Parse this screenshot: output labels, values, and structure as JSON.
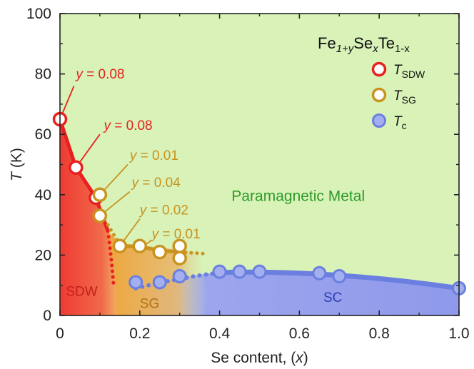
{
  "chart_data": {
    "type": "scatter",
    "xlabel": {
      "text": "Se content, (",
      "var": "x",
      "tail": ")"
    },
    "ylabel": {
      "var": "T",
      "unit": " (K)"
    },
    "xlim": [
      0,
      1.0
    ],
    "ylim": [
      0,
      100
    ],
    "xticks": [
      "0",
      "0.2",
      "0.4",
      "0.6",
      "0.8",
      "1.0"
    ],
    "yticks": [
      "0",
      "20",
      "40",
      "60",
      "80",
      "100"
    ],
    "legend": {
      "position": "top-right",
      "title": {
        "base": "Fe",
        "sub1": "1+y",
        "mid1": "Se",
        "sub2": "x",
        "mid2": "Te",
        "sub3": "1-x"
      },
      "entries": [
        {
          "var": "T",
          "sub": "SDW",
          "color": "#e8201f"
        },
        {
          "var": "T",
          "sub": "SG",
          "color": "#c9931f"
        },
        {
          "var": "T",
          "sub": "c",
          "color": "#6b7fe0"
        }
      ]
    },
    "series": [
      {
        "name": "T_SDW",
        "color": "#e8201f",
        "points": [
          [
            0,
            65
          ],
          [
            0.04,
            49
          ],
          [
            0.09,
            39
          ]
        ]
      },
      {
        "name": "T_SG",
        "color": "#c9931f",
        "points": [
          [
            0.1,
            40
          ],
          [
            0.1,
            33
          ],
          [
            0.15,
            23
          ],
          [
            0.2,
            23
          ],
          [
            0.25,
            21
          ],
          [
            0.3,
            23
          ],
          [
            0.3,
            19
          ]
        ]
      },
      {
        "name": "T_c",
        "color": "#6b7fe0",
        "points": [
          [
            0.19,
            11
          ],
          [
            0.25,
            11
          ],
          [
            0.3,
            13
          ],
          [
            0.4,
            14.5
          ],
          [
            0.45,
            14.5
          ],
          [
            0.5,
            14.5
          ],
          [
            0.65,
            14
          ],
          [
            0.7,
            13
          ],
          [
            1.0,
            9
          ]
        ]
      }
    ],
    "annotations": [
      {
        "label": "y = 0.08",
        "color": "red"
      },
      {
        "label": "y = 0.08",
        "color": "red"
      },
      {
        "label": "y = 0.01",
        "color": "gold"
      },
      {
        "label": "y = 0.04",
        "color": "gold"
      },
      {
        "label": "y = 0.02",
        "color": "gold"
      },
      {
        "label": "y = 0.01",
        "color": "gold"
      }
    ],
    "regions": [
      {
        "label": "SDW",
        "color": "#c4201c"
      },
      {
        "label": "SG",
        "color": "#b0711a"
      },
      {
        "label": "SC",
        "color": "#2d3fb0"
      },
      {
        "label": "Paramagnetic Metal",
        "color": "#2f9a2a"
      }
    ]
  }
}
